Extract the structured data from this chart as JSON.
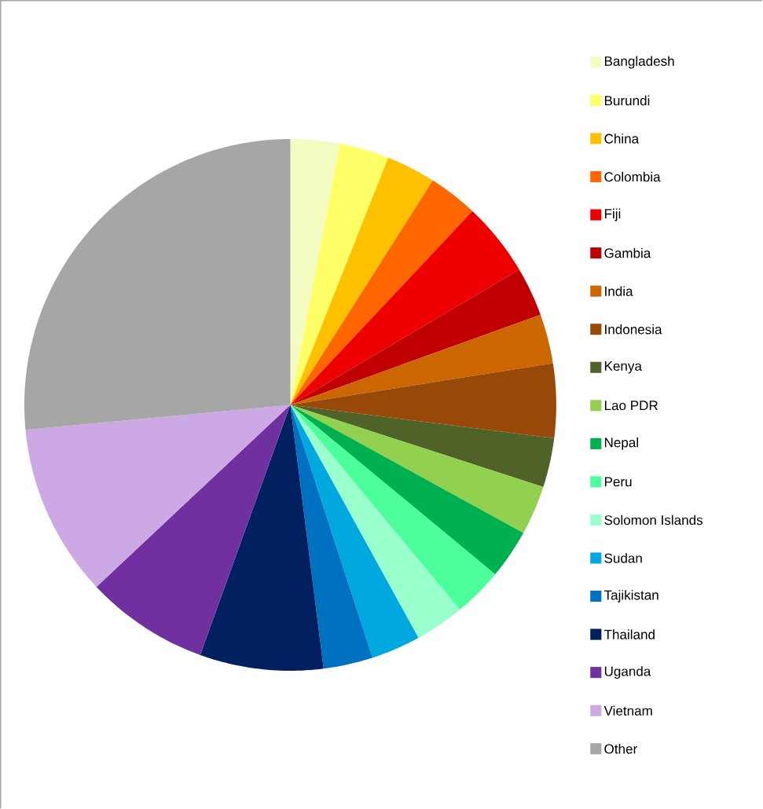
{
  "chart_data": {
    "type": "pie",
    "legend": "right",
    "categories": [
      "Bangladesh",
      "Burundi",
      "China",
      "Colombia",
      "Fiji",
      "Gambia",
      "India",
      "Indonesia",
      "Kenya",
      "Lao PDR",
      "Nepal",
      "Peru",
      "Solomon Islands",
      "Sudan",
      "Tajikistan",
      "Thailand",
      "Uganda",
      "Vietnam",
      "Other"
    ],
    "values": [
      3.0,
      3.0,
      3.0,
      3.0,
      4.5,
      3.0,
      3.0,
      4.5,
      3.0,
      3.0,
      3.0,
      3.0,
      3.0,
      3.0,
      3.0,
      7.5,
      7.5,
      10.5,
      26.5
    ],
    "colors": [
      "#F4FBC0",
      "#FFFF66",
      "#FFC000",
      "#FF6600",
      "#EE0000",
      "#C00000",
      "#CC6600",
      "#984807",
      "#4F6228",
      "#92D050",
      "#00B050",
      "#4DFF9A",
      "#99FFCC",
      "#00A8E0",
      "#0070C0",
      "#002060",
      "#7030A0",
      "#CCA9E4",
      "#A6A6A6"
    ]
  }
}
